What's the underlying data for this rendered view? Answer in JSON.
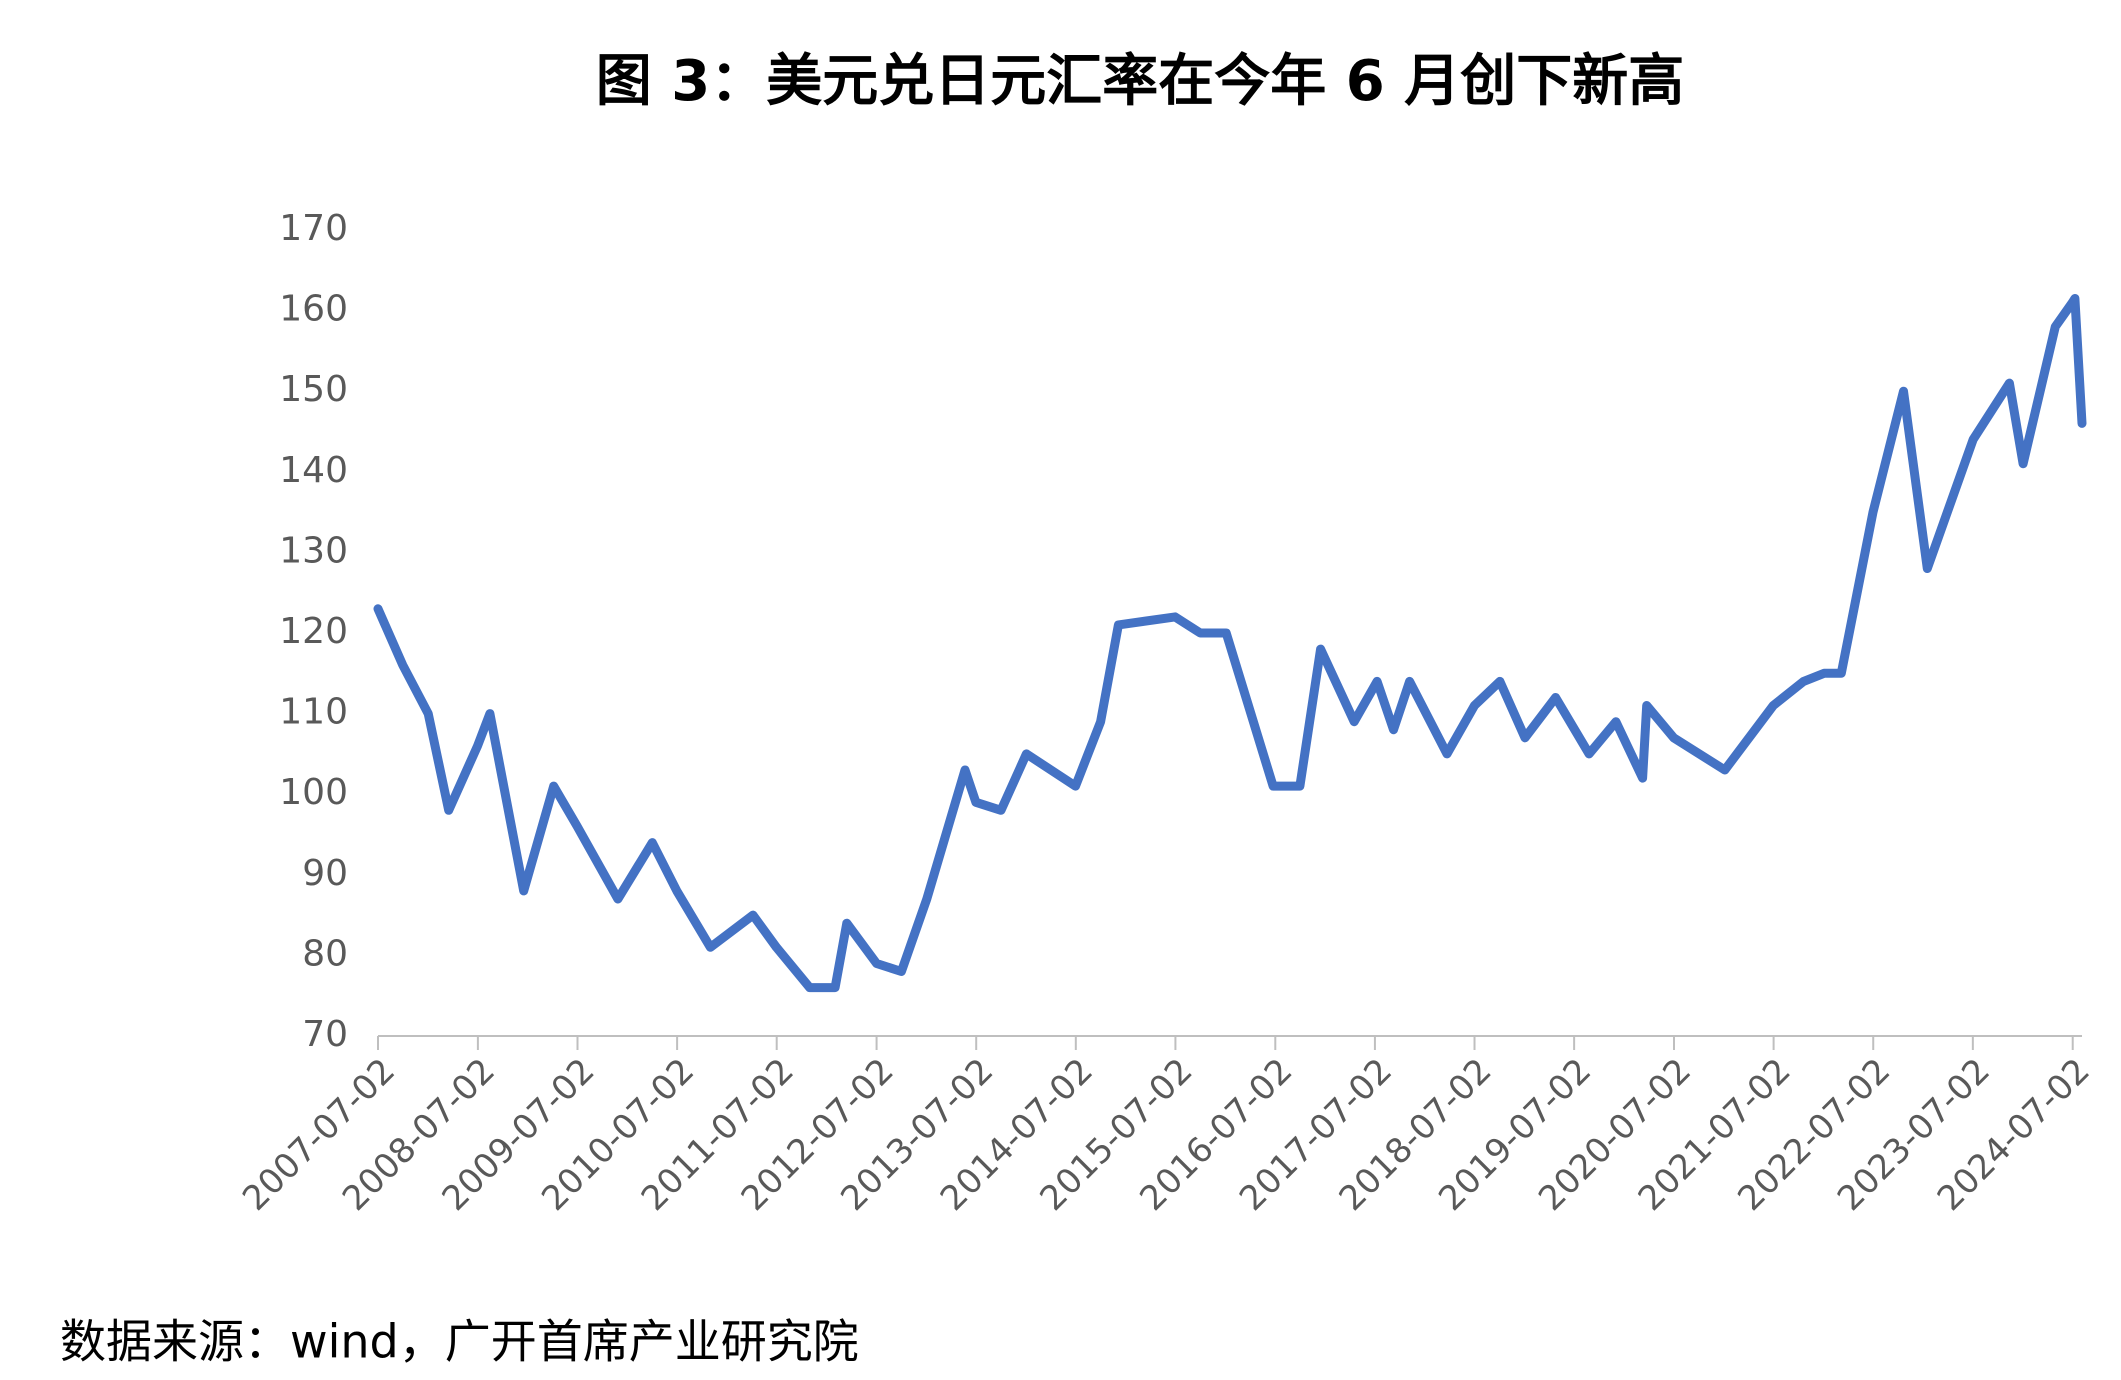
{
  "chart_data": {
    "type": "line",
    "title": "图 3：美元兑日元汇率在今年 6 月创下新高",
    "source": "数据来源：wind，广开首席产业研究院",
    "color": "#4472c4",
    "x": [
      "2007-07-02",
      "2007-10-01",
      "2008-01-02",
      "2008-03-17",
      "2008-07-01",
      "2008-08-15",
      "2008-12-17",
      "2009-04-06",
      "2009-07-01",
      "2009-11-27",
      "2010-04-02",
      "2010-07-01",
      "2010-11-01",
      "2011-04-06",
      "2011-07-01",
      "2011-10-31",
      "2012-02-01",
      "2012-03-15",
      "2012-07-02",
      "2012-10-01",
      "2013-01-02",
      "2013-05-22",
      "2013-07-01",
      "2013-10-01",
      "2014-01-02",
      "2014-07-01",
      "2014-10-01",
      "2014-12-05",
      "2015-07-01",
      "2015-10-01",
      "2016-01-04",
      "2016-06-24",
      "2016-09-30",
      "2016-12-15",
      "2017-04-17",
      "2017-07-10",
      "2017-09-08",
      "2017-11-06",
      "2018-03-23",
      "2018-07-02",
      "2018-10-03",
      "2019-01-03",
      "2019-04-25",
      "2019-08-26",
      "2019-12-02",
      "2020-03-09",
      "2020-03-24",
      "2020-07-01",
      "2021-01-04",
      "2021-07-01",
      "2021-10-20",
      "2022-01-03",
      "2022-03-07",
      "2022-07-01",
      "2022-10-21",
      "2023-01-16",
      "2023-07-03",
      "2023-11-13",
      "2024-01-02",
      "2024-04-29",
      "2024-07-01",
      "2024-07-10",
      "2024-08-05"
    ],
    "values": [
      123,
      116,
      110,
      98,
      106,
      110,
      88,
      101,
      96,
      87,
      94,
      88,
      81,
      85,
      81,
      76,
      76,
      84,
      79,
      78,
      87,
      103,
      99,
      98,
      105,
      101,
      109,
      121,
      122,
      120,
      120,
      101,
      101,
      118,
      109,
      114,
      108,
      114,
      105,
      111,
      114,
      107,
      112,
      105,
      109,
      102,
      111,
      107,
      103,
      111,
      114,
      115,
      115,
      135,
      150,
      128,
      144,
      151,
      141,
      158,
      161,
      161.5,
      146
    ],
    "xlim": [
      "2007-07-02",
      "2024-08-05"
    ],
    "xticks": [
      "2007-07-02",
      "2008-07-02",
      "2009-07-02",
      "2010-07-02",
      "2011-07-02",
      "2012-07-02",
      "2013-07-02",
      "2014-07-02",
      "2015-07-02",
      "2016-07-02",
      "2017-07-02",
      "2018-07-02",
      "2019-07-02",
      "2020-07-02",
      "2021-07-02",
      "2022-07-02",
      "2023-07-02",
      "2024-07-02"
    ],
    "ylim": [
      70,
      170
    ],
    "yticks": [
      70,
      80,
      90,
      100,
      110,
      120,
      130,
      140,
      150,
      160,
      170
    ],
    "grid": false
  }
}
